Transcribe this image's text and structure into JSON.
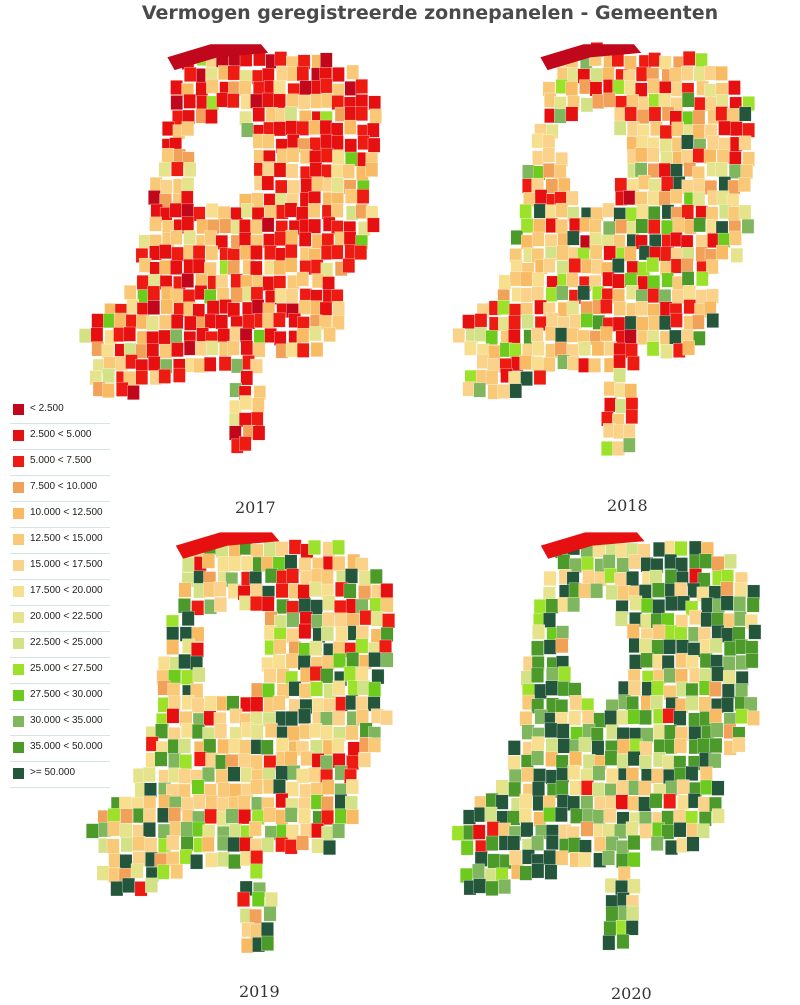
{
  "title": "Vermogen geregistreerde zonnepanelen - Gemeenten",
  "maps": [
    {
      "id": "map-2017",
      "year": "2017",
      "color_weights": [
        3,
        20,
        16,
        5,
        8,
        12,
        6,
        3,
        4,
        1,
        1,
        1,
        1,
        0,
        0
      ]
    },
    {
      "id": "map-2018",
      "year": "2018",
      "color_weights": [
        1,
        10,
        9,
        5,
        9,
        15,
        12,
        6,
        5,
        3,
        3,
        2,
        4,
        3,
        3
      ]
    },
    {
      "id": "map-2019",
      "year": "2019",
      "color_weights": [
        0,
        5,
        5,
        3,
        6,
        12,
        12,
        7,
        7,
        5,
        5,
        3,
        6,
        8,
        9
      ]
    },
    {
      "id": "map-2020",
      "year": "2020",
      "color_weights": [
        0,
        1,
        1,
        1,
        2,
        6,
        9,
        6,
        5,
        5,
        4,
        4,
        12,
        18,
        24
      ]
    }
  ],
  "legend": {
    "items": [
      {
        "label": "< 2.500",
        "color": "#c0071b"
      },
      {
        "label": "2.500 < 5.000",
        "color": "#e61010"
      },
      {
        "label": "5.000 < 7.500",
        "color": "#ee1b12"
      },
      {
        "label": "7.500 < 10.000",
        "color": "#f2a159"
      },
      {
        "label": "10.000 < 12.500",
        "color": "#f8bb63"
      },
      {
        "label": "12.500 < 15.000",
        "color": "#f9c978"
      },
      {
        "label": "15.000 < 17.500",
        "color": "#fbd28a"
      },
      {
        "label": "17.500 < 20.000",
        "color": "#f8df8f"
      },
      {
        "label": "20.000 < 22.500",
        "color": "#e5e38c"
      },
      {
        "label": "22.500 < 25.000",
        "color": "#d3e287"
      },
      {
        "label": "25.000 < 27.500",
        "color": "#9de22a"
      },
      {
        "label": "27.500 < 30.000",
        "color": "#6ccb1c"
      },
      {
        "label": "30.000 < 35.000",
        "color": "#7fb65e"
      },
      {
        "label": "35.000 < 50.000",
        "color": "#4c9a2a"
      },
      {
        "label": ">= 50.000",
        "color": "#23563b"
      }
    ]
  }
}
